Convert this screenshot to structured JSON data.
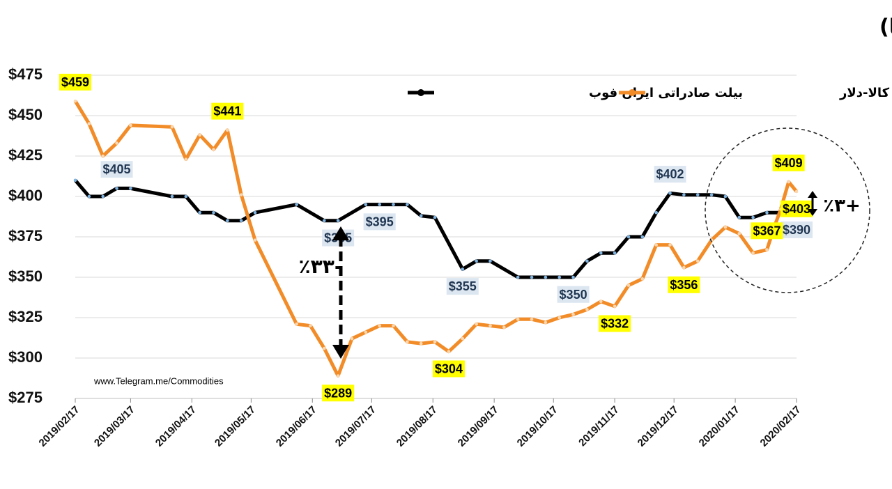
{
  "chart_data": {
    "type": "line",
    "title": "روند تغییرات یکساله قیمت بیلت داخلی و صادراتی ایران (محاسبه با قیمت نیما)",
    "xlim": [
      "2019/02/17",
      "2020/02/17"
    ],
    "xticks": [
      "2019/02/17",
      "2019/03/17",
      "2019/04/17",
      "2019/05/17",
      "2019/06/17",
      "2019/07/17",
      "2019/08/17",
      "2019/09/17",
      "2019/10/17",
      "2019/11/17",
      "2019/12/17",
      "2020/01/17",
      "2020/02/17"
    ],
    "ylim": [
      275,
      475
    ],
    "yticks": [
      {
        "value": 275,
        "label": "$275"
      },
      {
        "value": 300,
        "label": "$300"
      },
      {
        "value": 325,
        "label": "$325"
      },
      {
        "value": 350,
        "label": "$350"
      },
      {
        "value": 375,
        "label": "$375"
      },
      {
        "value": 400,
        "label": "$400"
      },
      {
        "value": 425,
        "label": "$425"
      },
      {
        "value": 450,
        "label": "$450"
      },
      {
        "value": 475,
        "label": "$475"
      }
    ],
    "grid": true,
    "annotations": [
      "-٪۳۳",
      "+٪۳"
    ],
    "source": "www.Telegram.me/Commodities",
    "series": [
      {
        "name": "بیلت صادراتی ایران فوب",
        "color": "#000000",
        "x": [
          "2019/02/17",
          "2019/02/24",
          "2019/03/03",
          "2019/03/10",
          "2019/03/17",
          "2019/04/07",
          "2019/04/14",
          "2019/04/21",
          "2019/04/28",
          "2019/05/05",
          "2019/05/12",
          "2019/05/19",
          "2019/06/09",
          "2019/06/23",
          "2019/06/30",
          "2019/07/14",
          "2019/07/21",
          "2019/07/28",
          "2019/08/04",
          "2019/08/11",
          "2019/08/18",
          "2019/09/01",
          "2019/09/08",
          "2019/09/15",
          "2019/09/29",
          "2019/10/06",
          "2019/10/13",
          "2019/10/20",
          "2019/10/27",
          "2019/11/03",
          "2019/11/10",
          "2019/11/17",
          "2019/11/24",
          "2019/12/01",
          "2019/12/08",
          "2019/12/15",
          "2019/12/22",
          "2019/12/29",
          "2020/01/05",
          "2020/01/12",
          "2020/01/19",
          "2020/01/26",
          "2020/02/02",
          "2020/02/09",
          "2020/02/17"
        ],
        "values": [
          410,
          400,
          400,
          405,
          405,
          400,
          400,
          390,
          390,
          385,
          385,
          390,
          395,
          385,
          385,
          395,
          395,
          395,
          395,
          388,
          387,
          355,
          360,
          360,
          350,
          350,
          350,
          350,
          350,
          360,
          365,
          365,
          375,
          375,
          390,
          402,
          401,
          401,
          401,
          400,
          387,
          387,
          390,
          390,
          390
        ],
        "value_labels": [
          null,
          null,
          null,
          "$405",
          null,
          null,
          null,
          null,
          null,
          null,
          null,
          null,
          null,
          null,
          "$385",
          null,
          "$395",
          null,
          null,
          null,
          null,
          "$355",
          null,
          null,
          null,
          null,
          null,
          null,
          "$350",
          null,
          null,
          null,
          null,
          null,
          null,
          "$402",
          null,
          null,
          null,
          null,
          null,
          null,
          null,
          null,
          "$390"
        ]
      },
      {
        "name": "بیلت خوزستان-بورس کالا-دلار",
        "color": "#f28c28",
        "x": [
          "2019/02/17",
          "2019/02/24",
          "2019/03/03",
          "2019/03/10",
          "2019/03/17",
          "2019/04/07",
          "2019/04/14",
          "2019/04/21",
          "2019/04/28",
          "2019/05/05",
          "2019/05/12",
          "2019/05/19",
          "2019/06/09",
          "2019/06/16",
          "2019/06/23",
          "2019/06/30",
          "2019/07/07",
          "2019/07/14",
          "2019/07/21",
          "2019/07/28",
          "2019/08/04",
          "2019/08/11",
          "2019/08/18",
          "2019/08/25",
          "2019/09/01",
          "2019/09/08",
          "2019/09/15",
          "2019/09/22",
          "2019/09/29",
          "2019/10/06",
          "2019/10/13",
          "2019/10/20",
          "2019/10/27",
          "2019/11/03",
          "2019/11/10",
          "2019/11/17",
          "2019/11/24",
          "2019/12/01",
          "2019/12/08",
          "2019/12/15",
          "2019/12/22",
          "2019/12/29",
          "2020/01/05",
          "2020/01/12",
          "2020/01/19",
          "2020/01/26",
          "2020/02/02",
          "2020/02/06",
          "2020/02/09",
          "2020/02/13",
          "2020/02/17"
        ],
        "values": [
          459,
          445,
          425,
          433,
          444,
          443,
          423,
          438,
          429,
          441,
          401,
          373,
          321,
          320,
          306,
          289,
          312,
          316,
          320,
          320,
          310,
          309,
          310,
          304,
          312,
          321,
          320,
          319,
          324,
          324,
          322,
          325,
          327,
          330,
          335,
          332,
          345,
          349,
          370,
          370,
          356,
          360,
          373,
          381,
          377,
          365,
          367,
          382,
          392,
          409,
          403
        ],
        "value_labels": [
          "$459",
          null,
          null,
          null,
          null,
          null,
          null,
          null,
          null,
          "$441",
          null,
          null,
          null,
          null,
          null,
          "$289",
          null,
          null,
          null,
          null,
          null,
          null,
          null,
          "$304",
          null,
          null,
          null,
          null,
          null,
          null,
          null,
          null,
          null,
          null,
          null,
          "$332",
          null,
          null,
          null,
          null,
          "$356",
          null,
          null,
          null,
          null,
          null,
          "$367",
          null,
          null,
          "$409",
          "$403"
        ]
      }
    ]
  }
}
